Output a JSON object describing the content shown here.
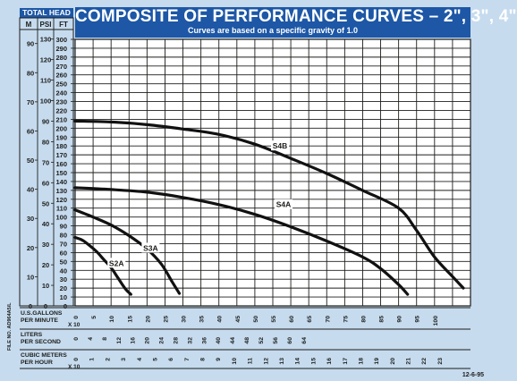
{
  "header": {
    "title": "COMPOSITE OF PERFORMANCE CURVES – 2\", 3\", 4\"",
    "subtitle": "Curves are based on a specific gravity of 1.0",
    "total_head": "TOTAL HEAD",
    "col_m": "M",
    "col_psi": "PSI",
    "col_ft": "FT"
  },
  "side_label": "FILE NO. AD964A5/L",
  "footer_date": "12-6-95",
  "colors": {
    "title_bg": "#1d57a6",
    "page_bg": "#c6dbee",
    "grid": "#1d1d1b",
    "curve": "#111111"
  },
  "chart_data": {
    "type": "line",
    "title": "COMPOSITE OF PERFORMANCE CURVES – 2\", 3\", 4\"",
    "subtitle": "Curves are based on a specific gravity of 1.0",
    "x_unit": "U.S.GALLONS PER MINUTE X 10",
    "y_unit": "FT",
    "xlim": [
      0,
      110
    ],
    "ylim": [
      0,
      300
    ],
    "grid": true,
    "y_ticks_m": [
      "0",
      "10",
      "20",
      "30",
      "40",
      "50",
      "60",
      "70",
      "80",
      "90"
    ],
    "y_ticks_psi": [
      "0",
      "10",
      "20",
      "30",
      "40",
      "50",
      "60",
      "70",
      "80",
      "90",
      "100",
      "110",
      "120",
      "130"
    ],
    "y_ticks_ft": [
      "0",
      "10",
      "20",
      "30",
      "40",
      "50",
      "60",
      "70",
      "80",
      "90",
      "100",
      "110",
      "120",
      "130",
      "140",
      "150",
      "160",
      "170",
      "180",
      "190",
      "200",
      "210",
      "220",
      "230",
      "240",
      "250",
      "260",
      "270",
      "280",
      "290",
      "300"
    ],
    "x_ticks": [
      "0",
      "5",
      "10",
      "15",
      "20",
      "25",
      "30",
      "35",
      "40",
      "45",
      "50",
      "55",
      "60",
      "65",
      "70",
      "75",
      "80",
      "85",
      "90",
      "95",
      "100"
    ],
    "scales": [
      {
        "label": "U.S.GALLONS\nPER MINUTE",
        "mult": "X 10",
        "ticks": [
          "0",
          "5",
          "10",
          "15",
          "20",
          "25",
          "30",
          "35",
          "40",
          "45",
          "50",
          "55",
          "60",
          "65",
          "70",
          "75",
          "80",
          "85",
          "90",
          "95",
          "100"
        ]
      },
      {
        "label": "LITERS\nPER SECOND",
        "mult": "",
        "ticks": [
          "0",
          "4",
          "8",
          "12",
          "16",
          "20",
          "24",
          "28",
          "32",
          "36",
          "40",
          "44",
          "48",
          "52",
          "56",
          "60",
          "64"
        ]
      },
      {
        "label": "CUBIC METERS\nPER HOUR",
        "mult": "X 10",
        "ticks": [
          "0",
          "1",
          "2",
          "3",
          "4",
          "5",
          "6",
          "7",
          "8",
          "9",
          "10",
          "11",
          "12",
          "13",
          "14",
          "15",
          "16",
          "17",
          "18",
          "19",
          "20",
          "21",
          "22",
          "23"
        ]
      }
    ],
    "series": [
      {
        "name": "S2A",
        "points": [
          [
            0,
            77
          ],
          [
            2,
            74
          ],
          [
            4,
            68
          ],
          [
            6,
            61
          ],
          [
            8,
            52
          ],
          [
            10,
            43
          ],
          [
            12,
            31
          ],
          [
            14,
            19
          ],
          [
            15.5,
            13
          ]
        ]
      },
      {
        "name": "S3A",
        "points": [
          [
            0,
            108
          ],
          [
            5,
            100
          ],
          [
            10,
            91
          ],
          [
            15,
            79
          ],
          [
            20,
            64
          ],
          [
            24,
            47
          ],
          [
            27,
            27
          ],
          [
            29,
            14
          ]
        ]
      },
      {
        "name": "S4A",
        "points": [
          [
            0,
            133
          ],
          [
            10,
            131
          ],
          [
            20,
            128
          ],
          [
            30,
            122
          ],
          [
            40,
            114
          ],
          [
            50,
            103
          ],
          [
            60,
            89
          ],
          [
            70,
            73
          ],
          [
            80,
            55
          ],
          [
            85,
            42
          ],
          [
            90,
            24
          ],
          [
            92.5,
            13
          ]
        ]
      },
      {
        "name": "S4B",
        "points": [
          [
            0,
            208
          ],
          [
            10,
            207
          ],
          [
            20,
            204
          ],
          [
            30,
            199
          ],
          [
            40,
            193
          ],
          [
            50,
            182
          ],
          [
            60,
            166
          ],
          [
            70,
            149
          ],
          [
            80,
            130
          ],
          [
            90,
            110
          ],
          [
            95,
            85
          ],
          [
            100,
            55
          ],
          [
            105,
            33
          ],
          [
            108,
            20
          ]
        ]
      }
    ],
    "curve_labels": [
      {
        "name": "S4B",
        "x": 57,
        "y": 178
      },
      {
        "name": "S4A",
        "x": 58,
        "y": 112
      },
      {
        "name": "S3A",
        "x": 21,
        "y": 63
      },
      {
        "name": "S2A",
        "x": 11.5,
        "y": 46
      }
    ]
  }
}
